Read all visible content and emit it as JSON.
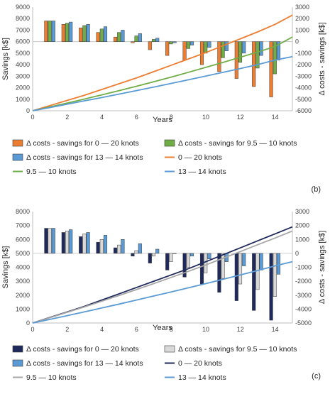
{
  "panel_labels": [
    "(b)",
    "(c)"
  ],
  "chart_data": [
    {
      "type": "bar+line",
      "panel_label": "(b)",
      "xlabel": "Years",
      "ylabel": "Savings [k$]",
      "y2label": "Δ costs - savings [k$]",
      "xlim": [
        0,
        15
      ],
      "ylim": [
        0,
        9000
      ],
      "y2lim": [
        -6000,
        3000
      ],
      "xticks": [
        0,
        2,
        4,
        6,
        8,
        10,
        12,
        14
      ],
      "yticks": [
        0,
        1000,
        2000,
        3000,
        4000,
        5000,
        6000,
        7000,
        8000,
        9000
      ],
      "y2ticks": [
        -6000,
        -5000,
        -4000,
        -3000,
        -2000,
        -1000,
        0,
        1000,
        2000,
        3000
      ],
      "grid": false,
      "legend_position": "bottom",
      "bar_x": [
        1,
        2,
        3,
        4,
        5,
        6,
        7,
        8,
        9,
        10,
        11,
        12,
        13,
        14
      ],
      "bar_series": [
        {
          "name": "Δ costs - savings for 0 — 20 knots",
          "color": "#ed7d31",
          "values": [
            1800,
            1500,
            1200,
            800,
            400,
            -100,
            -700,
            -1200,
            -1600,
            -2000,
            -2600,
            -3200,
            -3900,
            -4800
          ]
        },
        {
          "name": "Δ costs - savings for 9.5 — 10 knots",
          "color": "#70ad47",
          "values": [
            1800,
            1600,
            1400,
            1100,
            800,
            500,
            200,
            -200,
            -600,
            -1000,
            -1400,
            -1800,
            -2300,
            -2800
          ]
        },
        {
          "name": "Δ costs - savings for 13 — 14 knots",
          "color": "#5b9bd5",
          "values": [
            1800,
            1700,
            1500,
            1300,
            1000,
            700,
            300,
            -100,
            -300,
            -500,
            -800,
            -1000,
            -1200,
            -1600
          ]
        }
      ],
      "line_series": [
        {
          "name": "0 — 20 knots",
          "color": "#ed7d31",
          "x": [
            0,
            1,
            2,
            3,
            4,
            5,
            6,
            7,
            8,
            9,
            10,
            11,
            12,
            13,
            14,
            15
          ],
          "y": [
            0,
            450,
            900,
            1350,
            1850,
            2350,
            2850,
            3400,
            3950,
            4500,
            5050,
            5650,
            6250,
            6850,
            7500,
            8300
          ]
        },
        {
          "name": "9.5 — 10 knots",
          "color": "#70ad47",
          "x": [
            0,
            1,
            2,
            3,
            4,
            5,
            6,
            7,
            8,
            9,
            10,
            11,
            12,
            13,
            14,
            15
          ],
          "y": [
            0,
            330,
            670,
            1020,
            1380,
            1750,
            2130,
            2520,
            2920,
            3340,
            3770,
            4200,
            4650,
            5100,
            5580,
            6400
          ]
        },
        {
          "name": "13 — 14 knots",
          "color": "#5b9bd5",
          "x": [
            0,
            1,
            2,
            3,
            4,
            5,
            6,
            7,
            8,
            9,
            10,
            11,
            12,
            13,
            14,
            15
          ],
          "y": [
            0,
            280,
            570,
            860,
            1150,
            1450,
            1750,
            2060,
            2370,
            2690,
            3010,
            3340,
            3670,
            4010,
            4400,
            4700
          ]
        }
      ]
    },
    {
      "type": "bar+line",
      "panel_label": "(c)",
      "xlabel": "Years",
      "ylabel": "Savings [k$]",
      "y2label": "Δ costs - savings [k$]",
      "xlim": [
        0,
        15
      ],
      "ylim": [
        0,
        8000
      ],
      "y2lim": [
        -5000,
        3000
      ],
      "xticks": [
        0,
        2,
        4,
        6,
        8,
        10,
        12,
        14
      ],
      "yticks": [
        0,
        1000,
        2000,
        3000,
        4000,
        5000,
        6000,
        7000,
        8000
      ],
      "y2ticks": [
        -5000,
        -4000,
        -3000,
        -2000,
        -1000,
        0,
        1000,
        2000,
        3000
      ],
      "grid": false,
      "legend_position": "bottom",
      "bar_x": [
        1,
        2,
        3,
        4,
        5,
        6,
        7,
        8,
        9,
        10,
        11,
        12,
        13,
        14
      ],
      "bar_series": [
        {
          "name": "Δ costs - savings for 0 — 20 knots",
          "color": "#1f2a5c",
          "values": [
            1800,
            1500,
            1200,
            800,
            400,
            -200,
            -700,
            -1200,
            -1700,
            -2200,
            -2800,
            -3400,
            -4100,
            -4800
          ]
        },
        {
          "name": "Δ costs - savings for 9.5 — 10 knots",
          "color": "#d9d9d9",
          "values": [
            1800,
            1600,
            1400,
            1000,
            600,
            200,
            -200,
            -600,
            -1000,
            -1400,
            -1800,
            -2200,
            -2600,
            -3100
          ]
        },
        {
          "name": "Δ costs - savings for 13 — 14 knots",
          "color": "#5b9bd5",
          "values": [
            1800,
            1700,
            1500,
            1300,
            1000,
            700,
            300,
            0,
            -200,
            -400,
            -600,
            -900,
            -1200,
            -1500
          ]
        }
      ],
      "line_series": [
        {
          "name": "0 — 20 knots",
          "color": "#1f2a5c",
          "x": [
            0,
            1,
            2,
            3,
            4,
            5,
            6,
            7,
            8,
            9,
            10,
            11,
            12,
            13,
            14,
            15
          ],
          "y": [
            0,
            400,
            800,
            1200,
            1650,
            2100,
            2550,
            3000,
            3450,
            3900,
            4400,
            4900,
            5400,
            5900,
            6400,
            6900
          ]
        },
        {
          "name": "9.5 — 10 knots",
          "color": "#a6a6a6",
          "x": [
            0,
            1,
            2,
            3,
            4,
            5,
            6,
            7,
            8,
            9,
            10,
            11,
            12,
            13,
            14,
            15
          ],
          "y": [
            0,
            380,
            770,
            1160,
            1570,
            1980,
            2400,
            2830,
            3270,
            3710,
            4170,
            4650,
            5130,
            5620,
            6100,
            6600
          ]
        },
        {
          "name": "13 — 14 knots",
          "color": "#5b9bd5",
          "x": [
            0,
            1,
            2,
            3,
            4,
            5,
            6,
            7,
            8,
            9,
            10,
            11,
            12,
            13,
            14,
            15
          ],
          "y": [
            0,
            260,
            530,
            800,
            1080,
            1360,
            1650,
            1940,
            2230,
            2530,
            2830,
            3140,
            3450,
            3770,
            4100,
            4400
          ]
        }
      ]
    }
  ]
}
